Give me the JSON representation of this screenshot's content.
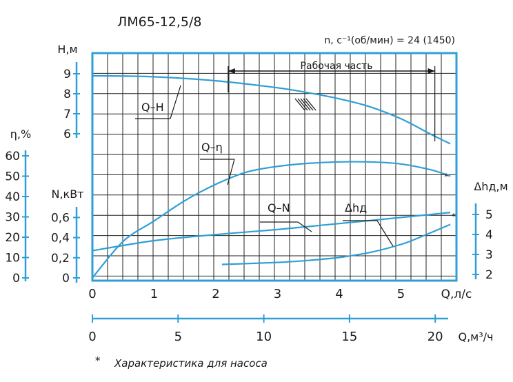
{
  "chart_data": {
    "type": "line",
    "title": "ЛМ65-12,5/8",
    "speed_label": "n, c⁻¹(об/мин) = 24 (1450)",
    "working_zone_label": "Рабочая часть",
    "footnote_mark": "*",
    "footnote": "Характеристика для насоса",
    "x_axis": {
      "label": "Q,л/с",
      "range": [
        0,
        5.9
      ],
      "ticks": [
        "0",
        "1",
        "2",
        "3",
        "4",
        "5"
      ],
      "tick_values": [
        0,
        1,
        2,
        3,
        4,
        5
      ]
    },
    "x2_axis": {
      "label": "Q,м³/ч",
      "range": [
        0,
        21.24
      ],
      "ticks": [
        "0",
        "5",
        "10",
        "15",
        "20"
      ],
      "tick_values": [
        0,
        5,
        10,
        15,
        20
      ]
    },
    "y_axes": {
      "H": {
        "label": "Н,м",
        "ticks": [
          "9",
          "8",
          "7",
          "6"
        ],
        "tick_values": [
          9,
          8,
          7,
          6
        ]
      },
      "eta": {
        "label": "η,%",
        "ticks": [
          "60",
          "50",
          "40",
          "30",
          "20",
          "10",
          "0"
        ],
        "tick_values": [
          60,
          50,
          40,
          30,
          20,
          10,
          0
        ]
      },
      "N": {
        "label": "N,кВт",
        "ticks": [
          "0,6",
          "0,4",
          "0,2",
          "0"
        ],
        "tick_values": [
          0.6,
          0.4,
          0.2,
          0
        ]
      },
      "dh": {
        "label": "Δhд,м",
        "ticks": [
          "5",
          "4",
          "3",
          "2"
        ],
        "tick_values": [
          5,
          4,
          3,
          2
        ]
      }
    },
    "working_zone": [
      2.2,
      5.55
    ],
    "grid": true,
    "series": [
      {
        "name": "Q–H",
        "axis": "H",
        "color": "#2e9fd6",
        "x": [
          0,
          1,
          2,
          3,
          3.5,
          4,
          4.5,
          5,
          5.5,
          5.8
        ],
        "y": [
          8.9,
          8.85,
          8.65,
          8.3,
          8.05,
          7.75,
          7.35,
          6.75,
          5.95,
          5.5
        ]
      },
      {
        "name": "Q–η",
        "axis": "eta",
        "color": "#2e9fd6",
        "x": [
          0,
          0.5,
          1,
          1.5,
          2,
          2.5,
          3,
          3.5,
          4,
          4.5,
          5,
          5.5,
          5.8
        ],
        "y": [
          0,
          18,
          28,
          38,
          46,
          52,
          54.8,
          56.3,
          57,
          57,
          56,
          53,
          50
        ]
      },
      {
        "name": "Q–N",
        "axis": "N",
        "color": "#2e9fd6",
        "x": [
          0,
          1,
          2,
          3,
          4,
          5,
          5.8
        ],
        "y": [
          0.27,
          0.37,
          0.43,
          0.48,
          0.54,
          0.6,
          0.65
        ]
      },
      {
        "name": "Δhд",
        "axis": "dh",
        "color": "#2e9fd6",
        "x": [
          2.1,
          3,
          3.5,
          4,
          4.5,
          5,
          5.3,
          5.8
        ],
        "y": [
          2.5,
          2.6,
          2.7,
          2.85,
          3.1,
          3.5,
          3.85,
          4.5
        ]
      }
    ]
  }
}
